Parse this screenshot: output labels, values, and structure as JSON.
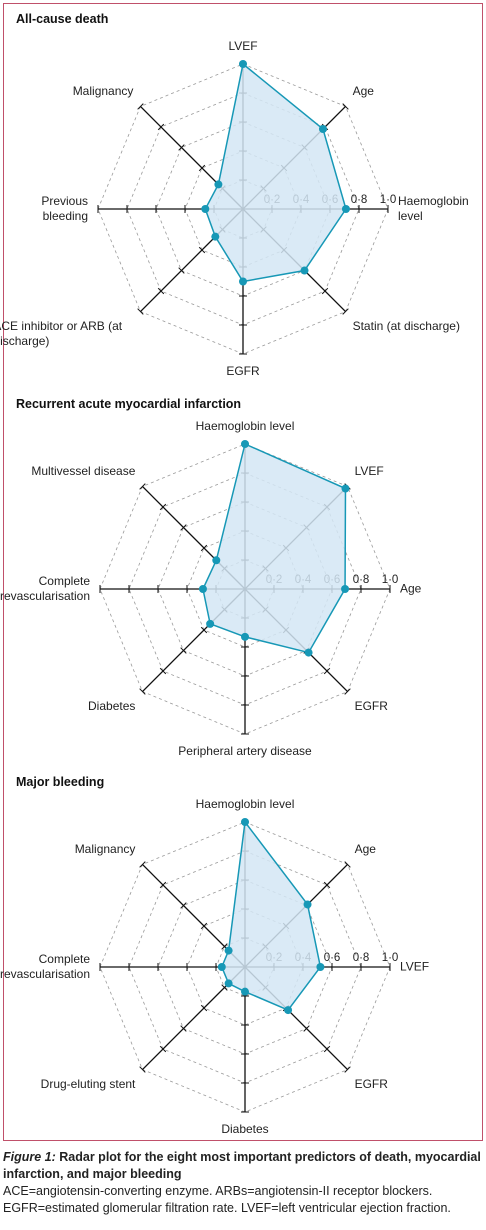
{
  "chart_data": [
    {
      "type": "radar",
      "title": "All-cause death",
      "categories": [
        "LVEF",
        "Age",
        "Haemoglobin level",
        "Statin (at discharge)",
        "EGFR",
        "ACE inhibitor or ARB (at discharge)",
        "Previous bleeding",
        "Malignancy"
      ],
      "values": [
        1.0,
        0.78,
        0.71,
        0.6,
        0.5,
        0.27,
        0.26,
        0.24
      ],
      "color": "#1798b6",
      "fill": "#d3e6f5",
      "rlim": [
        0,
        1
      ],
      "rticks": [
        {
          "value": 0.2,
          "label": "0·2"
        },
        {
          "value": 0.4,
          "label": "0·4"
        },
        {
          "value": 0.6,
          "label": "0·6"
        },
        {
          "value": 0.8,
          "label": "0·8"
        },
        {
          "value": 1.0,
          "label": "1·0"
        }
      ],
      "grid": true
    },
    {
      "type": "radar",
      "title": "Recurrent acute myocardial infarction",
      "categories": [
        "Haemoglobin level",
        "LVEF",
        "Age",
        "EGFR",
        "Peripheral artery disease",
        "Diabetes",
        "Complete revascularisation",
        "Multivessel disease"
      ],
      "values": [
        1.0,
        0.98,
        0.69,
        0.62,
        0.33,
        0.34,
        0.29,
        0.28
      ],
      "color": "#1798b6",
      "fill": "#d3e6f5",
      "rlim": [
        0,
        1
      ],
      "rticks": [
        {
          "value": 0.2,
          "label": "0·2"
        },
        {
          "value": 0.4,
          "label": "0·4"
        },
        {
          "value": 0.6,
          "label": "0·6"
        },
        {
          "value": 0.8,
          "label": "0·8"
        },
        {
          "value": 1.0,
          "label": "1·0"
        }
      ],
      "grid": true
    },
    {
      "type": "radar",
      "title": "Major bleeding",
      "categories": [
        "Haemoglobin level",
        "Age",
        "LVEF",
        "EGFR",
        "Diabetes",
        "Drug-eluting stent",
        "Complete revascularisation",
        "Malignancy"
      ],
      "values": [
        1.0,
        0.61,
        0.52,
        0.42,
        0.17,
        0.16,
        0.16,
        0.16
      ],
      "color": "#1798b6",
      "fill": "#d3e6f5",
      "rlim": [
        0,
        1
      ],
      "rticks": [
        {
          "value": 0.2,
          "label": "0·2"
        },
        {
          "value": 0.4,
          "label": "0·4"
        },
        {
          "value": 0.6,
          "label": "0·6"
        },
        {
          "value": 0.8,
          "label": "0·8"
        },
        {
          "value": 1.0,
          "label": "1·0"
        }
      ],
      "grid": true
    }
  ],
  "caption": {
    "label": "Figure 1:",
    "title": "Radar plot for the eight most important predictors of death, myocardial infarction, and major bleeding",
    "notes": "ACE=angiotensin-converting enzyme. ARBs=angiotensin-II receptor blockers. EGFR=estimated glomerular filtration rate. LVEF=left ventricular ejection fraction."
  }
}
